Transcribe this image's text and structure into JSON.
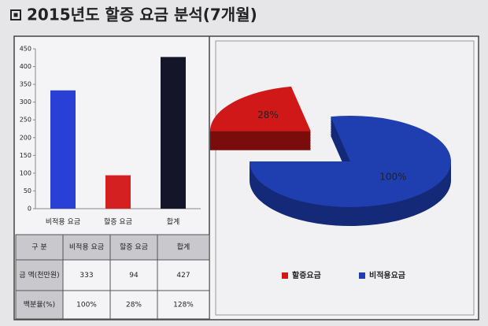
{
  "title": "2015년도 할증 요금 분석(7개월)",
  "chart_data": [
    {
      "type": "bar",
      "categories": [
        "비적용 요금",
        "할증 요금",
        "합계"
      ],
      "values": [
        333,
        94,
        427
      ],
      "colors": [
        "#2a3fd6",
        "#d42020",
        "#15152a"
      ],
      "ylim": [
        0,
        450
      ],
      "yticks": [
        0,
        50,
        100,
        150,
        200,
        250,
        300,
        350,
        400,
        450
      ],
      "grid": false
    },
    {
      "type": "pie",
      "categories": [
        "할증요금",
        "비적용요금"
      ],
      "values": [
        28,
        100
      ],
      "value_labels": [
        "28%",
        "100%"
      ],
      "colors": [
        "#d01818",
        "#1f3fb0"
      ],
      "legend": "bottom"
    }
  ],
  "table": {
    "header": [
      "구 분",
      "비적용 요금",
      "할증 요금",
      "합계"
    ],
    "rows": [
      [
        "금 액(천만원)",
        333,
        94,
        427
      ],
      [
        "백분율(%)",
        "100%",
        "28%",
        "128%"
      ]
    ]
  }
}
